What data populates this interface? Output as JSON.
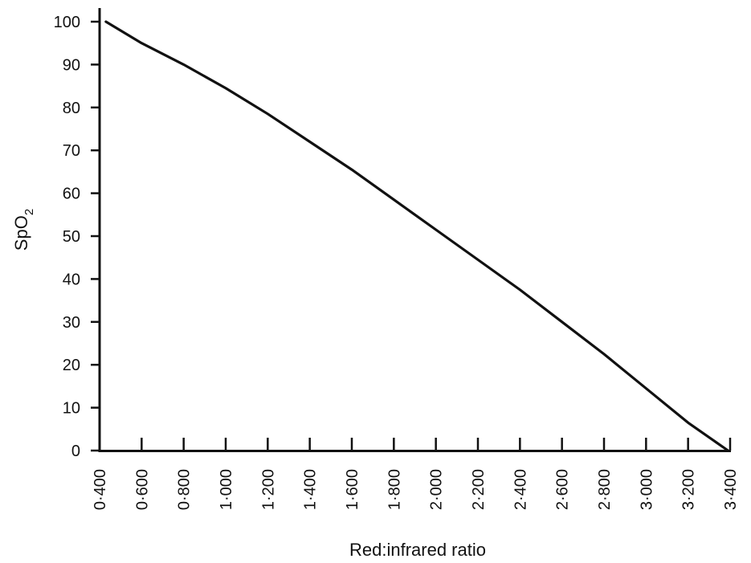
{
  "chart_data": {
    "type": "line",
    "title": "",
    "xlabel": "Red:infrared ratio",
    "ylabel": {
      "main": "SpO",
      "subscript": "2"
    },
    "xlim": [
      0.4,
      3.4
    ],
    "ylim": [
      0,
      100
    ],
    "x_ticks": [
      0.4,
      0.6,
      0.8,
      1.0,
      1.2,
      1.4,
      1.6,
      1.8,
      2.0,
      2.2,
      2.4,
      2.6,
      2.8,
      3.0,
      3.2,
      3.4
    ],
    "x_tick_labels": [
      "0·400",
      "0·600",
      "0·800",
      "1·000",
      "1·200",
      "1·400",
      "1·600",
      "1·800",
      "2·000",
      "2·200",
      "2·400",
      "2·600",
      "2·800",
      "3·000",
      "3·200",
      "3·400"
    ],
    "y_ticks": [
      0,
      10,
      20,
      30,
      40,
      50,
      60,
      70,
      80,
      90,
      100
    ],
    "y_tick_labels": [
      "0",
      "10",
      "20",
      "30",
      "40",
      "50",
      "60",
      "70",
      "80",
      "90",
      "100"
    ],
    "grid": false,
    "legend": "none",
    "series": [
      {
        "color": "#111111",
        "x": [
          0.43,
          0.6,
          0.8,
          1.0,
          1.2,
          1.4,
          1.6,
          1.8,
          2.0,
          2.2,
          2.4,
          2.6,
          2.8,
          3.0,
          3.2,
          3.39
        ],
        "y": [
          100,
          95,
          90,
          84.5,
          78.5,
          72,
          65.5,
          58.5,
          51.5,
          44.5,
          37.5,
          30,
          22.5,
          14.5,
          6.5,
          0
        ]
      }
    ]
  }
}
